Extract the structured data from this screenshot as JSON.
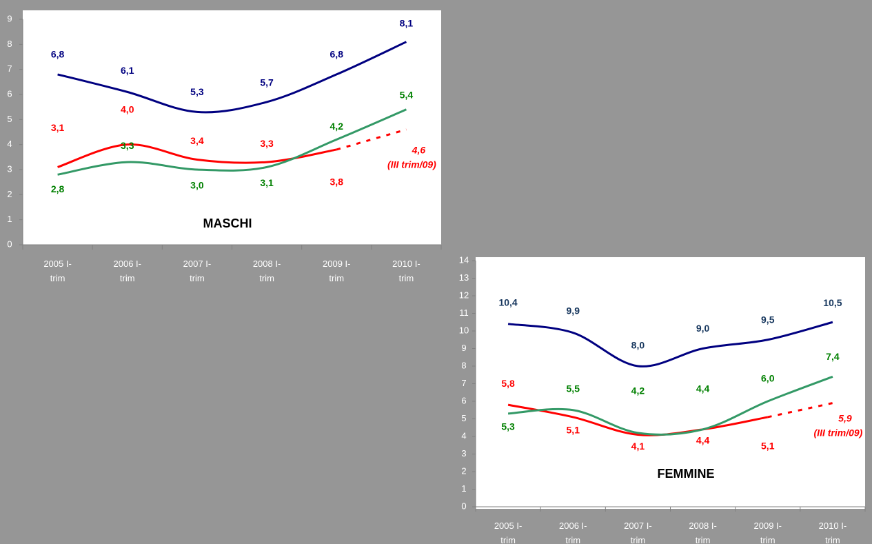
{
  "chart_data": [
    {
      "type": "line",
      "title": "MASCHI",
      "categories": [
        "2005 I-trim",
        "2006 I-trim",
        "2007 I-trim",
        "2008 I-trim",
        "2009 I-trim",
        "2010 I-trim"
      ],
      "ylim": [
        0,
        9
      ],
      "yticks": [
        0,
        1,
        2,
        3,
        4,
        5,
        6,
        7,
        8,
        9
      ],
      "series": [
        {
          "color": "#000080",
          "label_color": "#000080",
          "values": [
            6.8,
            6.1,
            5.3,
            5.7,
            6.8,
            8.1
          ],
          "value_labels": [
            "6,8",
            "6,1",
            "5,3",
            "5,7",
            "6,8",
            "8,1"
          ]
        },
        {
          "color": "#ff0000",
          "label_color": "#ff0000",
          "values": [
            3.1,
            4.0,
            3.4,
            3.3,
            3.8,
            4.6
          ],
          "value_labels": [
            "3,1",
            "4,0",
            "3,4",
            "3,3",
            "3,8",
            "4,6"
          ],
          "dashed_last_segment": true,
          "annotation": "(III trim/09)"
        },
        {
          "color": "#339966",
          "label_color": "#008000",
          "values": [
            2.8,
            3.3,
            3.0,
            3.1,
            4.2,
            5.4
          ],
          "value_labels": [
            "2,8",
            "3,3",
            "3,0",
            "3,1",
            "4,2",
            "5,4"
          ]
        }
      ]
    },
    {
      "type": "line",
      "title": "FEMMINE",
      "categories": [
        "2005 I-trim",
        "2006 I-trim",
        "2007 I-trim",
        "2008 I-trim",
        "2009 I-trim",
        "2010 I-trim"
      ],
      "ylim": [
        0,
        14
      ],
      "yticks": [
        0,
        1,
        2,
        3,
        4,
        5,
        6,
        7,
        8,
        9,
        10,
        11,
        12,
        13,
        14
      ],
      "series": [
        {
          "color": "#000080",
          "label_color": "#17375e",
          "values": [
            10.4,
            9.9,
            8.0,
            9.0,
            9.5,
            10.5
          ],
          "value_labels": [
            "10,4",
            "9,9",
            "8,0",
            "9,0",
            "9,5",
            "10,5"
          ]
        },
        {
          "color": "#ff0000",
          "label_color": "#ff0000",
          "values": [
            5.8,
            5.1,
            4.1,
            4.4,
            5.1,
            5.9
          ],
          "value_labels": [
            "5,8",
            "5,1",
            "4,1",
            "4,4",
            "5,1",
            "5,9"
          ],
          "dashed_last_segment": true,
          "annotation": "(III trim/09)"
        },
        {
          "color": "#339966",
          "label_color": "#008000",
          "values": [
            5.3,
            5.5,
            4.2,
            4.4,
            6.0,
            7.4
          ],
          "value_labels": [
            "5,3",
            "5,5",
            "4,2",
            "4,4",
            "6,0",
            "7,4"
          ]
        }
      ]
    }
  ]
}
